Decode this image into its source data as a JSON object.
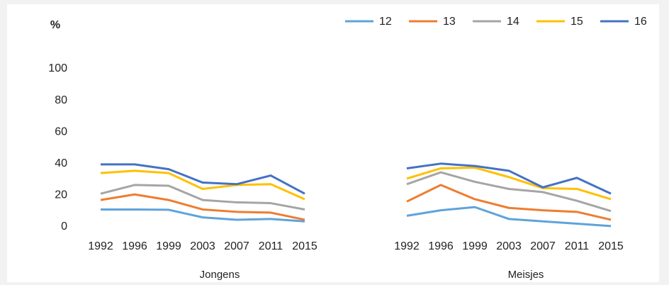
{
  "chart_data": {
    "type": "line",
    "ylabel": "%",
    "categories": [
      "1992",
      "1996",
      "1999",
      "2003",
      "2007",
      "2011",
      "2015",
      null,
      null,
      "1992",
      "1996",
      "1999",
      "2003",
      "2007",
      "2011",
      "2015"
    ],
    "groups": [
      "Jongens",
      "Meisjes"
    ],
    "series": [
      {
        "name": "12",
        "color": "#5ea3db",
        "values": [
          11,
          11,
          10.8,
          6,
          4.5,
          5,
          3.5,
          null,
          null,
          7,
          10.5,
          12.5,
          5,
          3.5,
          2,
          0.5
        ]
      },
      {
        "name": "13",
        "color": "#ed7d31",
        "values": [
          17,
          20.5,
          17,
          11,
          9.5,
          9,
          4.5,
          null,
          null,
          16,
          26.5,
          17.5,
          12,
          10.5,
          9.5,
          4.5
        ]
      },
      {
        "name": "14",
        "color": "#a5a5a5",
        "values": [
          21,
          26.5,
          26,
          17,
          15.5,
          15,
          11,
          null,
          null,
          27,
          34.5,
          28.5,
          24,
          22,
          16.5,
          10
        ]
      },
      {
        "name": "15",
        "color": "#ffc000",
        "values": [
          34,
          35.5,
          34,
          24,
          26.5,
          27,
          17.5,
          null,
          null,
          30.5,
          37,
          37.5,
          31.5,
          24.5,
          24,
          17.5
        ]
      },
      {
        "name": "16",
        "color": "#4472c4",
        "values": [
          39.5,
          39.5,
          36.5,
          28,
          27,
          32.5,
          21,
          null,
          null,
          37,
          40,
          38.5,
          35.5,
          25,
          31,
          21
        ]
      }
    ],
    "ylim": [
      0,
      100
    ],
    "yticks": [
      0,
      20,
      40,
      60,
      80,
      100
    ],
    "grid": false,
    "legend": "top-right"
  }
}
